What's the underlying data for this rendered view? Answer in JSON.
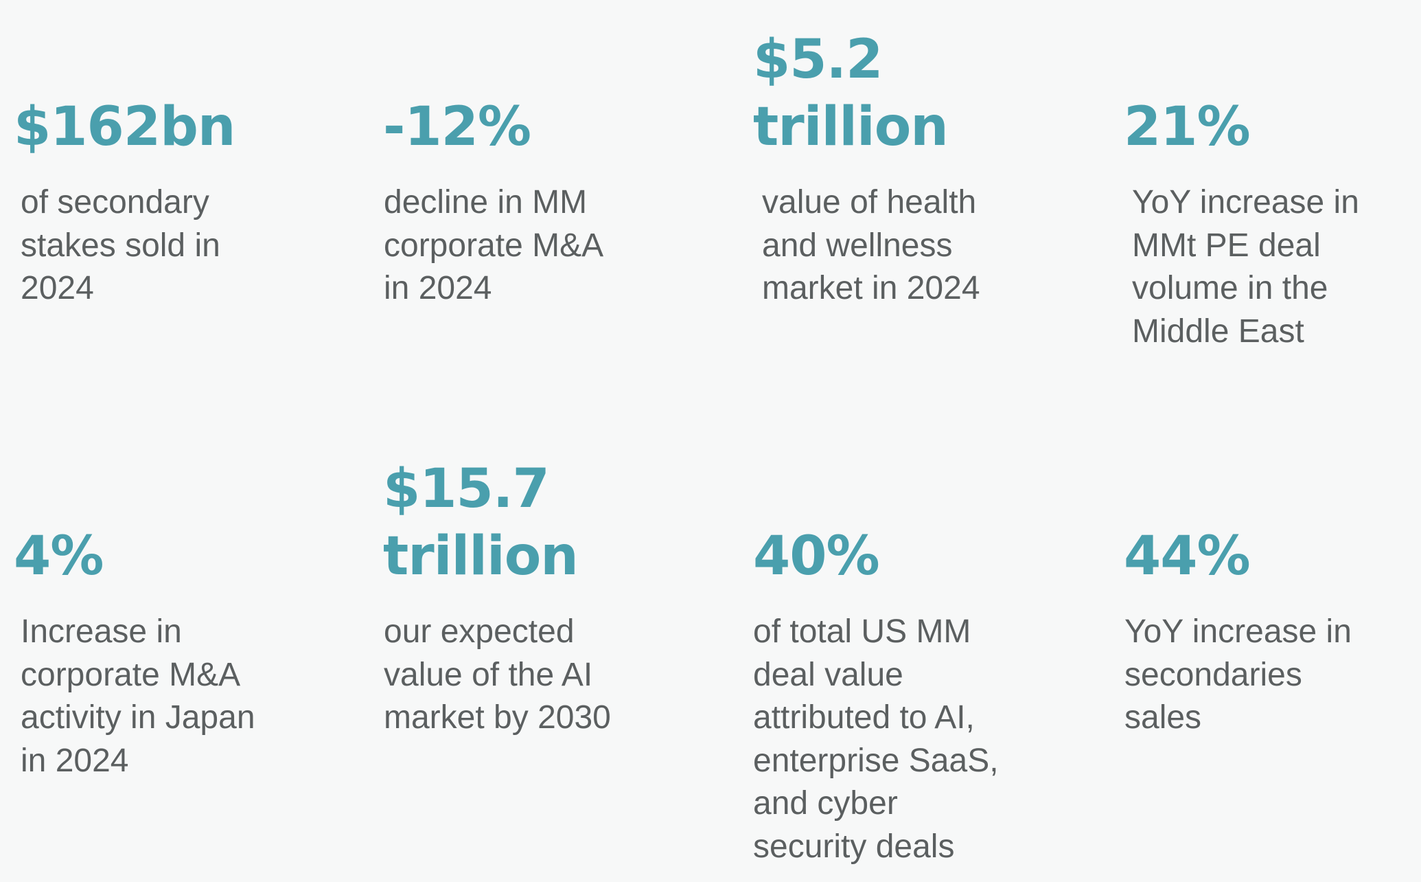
{
  "stats": [
    {
      "value": "$162bn",
      "caption": "of secondary\nstakes sold in\n2024"
    },
    {
      "value": "-12%",
      "caption": "decline in MM\ncorporate M&A\nin 2024"
    },
    {
      "value": "$5.2\ntrillion",
      "caption": "value of health\nand wellness\nmarket in 2024"
    },
    {
      "value": "21%",
      "caption": "YoY increase in\nMMt PE deal\nvolume in the\nMiddle East"
    },
    {
      "value": "4%",
      "caption": "Increase in\ncorporate M&A\nactivity in Japan\nin 2024"
    },
    {
      "value": "$15.7\ntrillion",
      "caption": "our expected\nvalue of the AI\nmarket by 2030"
    },
    {
      "value": "40%",
      "caption": "of total US MM\ndeal value\nattributed to AI,\nenterprise SaaS,\nand cyber\nsecurity deals"
    },
    {
      "value": "44%",
      "caption": "YoY increase in\nsecondaries\nsales"
    }
  ]
}
